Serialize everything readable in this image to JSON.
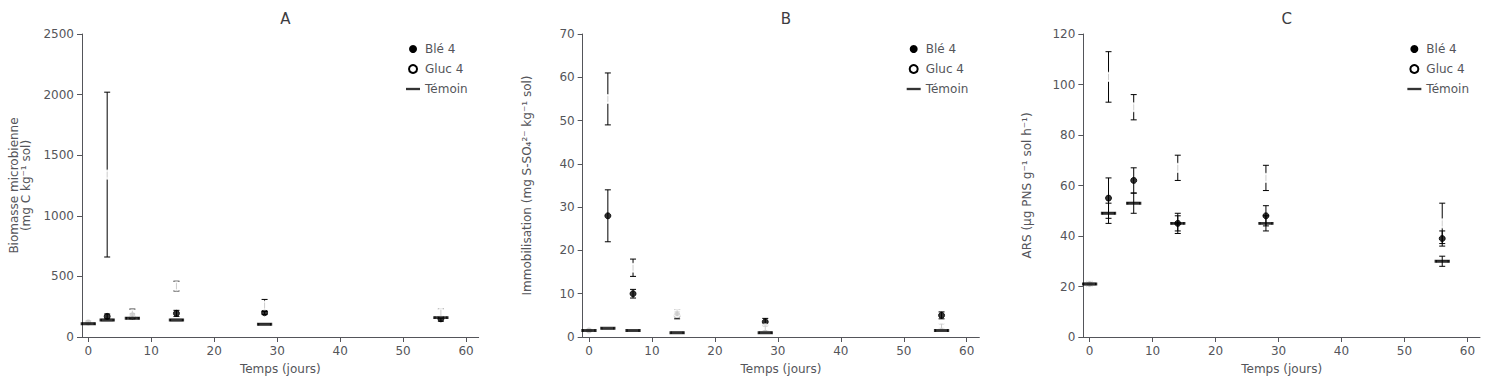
{
  "chart_data": [
    {
      "type": "scatter",
      "title": "A",
      "x_label": "Temps (jours)",
      "y_label": "Biomasse microbienne\n(mg C kg⁻¹ sol)",
      "xlim": [
        -1,
        62
      ],
      "ylim": [
        0,
        2500
      ],
      "xticks": [
        0,
        10,
        20,
        30,
        40,
        50,
        60
      ],
      "yticks": [
        0,
        500,
        1000,
        1500,
        2000,
        2500
      ],
      "grid": false,
      "legend": "upper right",
      "series": [
        {
          "name": "Blé 4",
          "color": "#000000",
          "marker": "circle",
          "x": [
            0,
            3,
            7,
            14,
            28,
            56
          ],
          "values": [
            120,
            170,
            175,
            195,
            200,
            150
          ],
          "errors": [
            15,
            20,
            20,
            25,
            15,
            20
          ]
        },
        {
          "name": "Gluc 4",
          "color": "#000000",
          "marker": "open_circle",
          "x": [
            0,
            3,
            7,
            14,
            28,
            56
          ],
          "values": [
            120,
            1340,
            190,
            420,
            260,
            200
          ],
          "errors": [
            15,
            680,
            40,
            40,
            50,
            30
          ]
        },
        {
          "name": "Témoin",
          "color": "#000000",
          "marker": "dash",
          "x": [
            0,
            3,
            7,
            14,
            28,
            56
          ],
          "values": [
            110,
            140,
            155,
            140,
            105,
            160
          ]
        }
      ]
    },
    {
      "type": "scatter",
      "title": "B",
      "x_label": "Temps (jours)",
      "y_label": "Immobilisation (mg S-SO₄²⁻ kg⁻¹ sol)",
      "xlim": [
        -1,
        62
      ],
      "ylim": [
        0,
        70
      ],
      "xticks": [
        0,
        10,
        20,
        30,
        40,
        50,
        60
      ],
      "yticks": [
        0,
        10,
        20,
        30,
        40,
        50,
        60,
        70
      ],
      "grid": false,
      "legend": "upper right",
      "series": [
        {
          "name": "Blé 4",
          "color": "#000000",
          "marker": "circle",
          "x": [
            0,
            3,
            7,
            14,
            28,
            56
          ],
          "values": [
            1.5,
            28,
            10,
            5.0,
            3.5,
            5.0
          ],
          "errors": [
            0.3,
            6,
            1,
            0.8,
            0.8,
            0.8
          ]
        },
        {
          "name": "Gluc 4",
          "color": "#000000",
          "marker": "open_circle",
          "x": [
            0,
            3,
            7,
            14,
            28,
            56
          ],
          "values": [
            1.5,
            55,
            16,
            5.5,
            2.0,
            2.5
          ],
          "errors": [
            0.3,
            6,
            2,
            0.8,
            0.5,
            0.5
          ]
        },
        {
          "name": "Témoin",
          "color": "#000000",
          "marker": "dash",
          "x": [
            0,
            3,
            7,
            14,
            28,
            56
          ],
          "values": [
            1.5,
            2.0,
            1.5,
            1.0,
            1.0,
            1.5
          ]
        }
      ]
    },
    {
      "type": "scatter",
      "title": "C",
      "x_label": "Temps (jours)",
      "y_label": "ARS (µg PNS g⁻¹ sol h⁻¹)",
      "xlim": [
        -1,
        62
      ],
      "ylim": [
        0,
        120
      ],
      "xticks": [
        0,
        10,
        20,
        30,
        40,
        50,
        60
      ],
      "yticks": [
        0,
        20,
        40,
        60,
        80,
        100,
        120
      ],
      "grid": false,
      "legend": "upper right",
      "series": [
        {
          "name": "Blé 4",
          "color": "#000000",
          "marker": "circle",
          "x": [
            0,
            3,
            7,
            14,
            28,
            56
          ],
          "values": [
            21,
            55,
            62,
            45,
            48,
            39
          ],
          "errors": [
            1,
            8,
            5,
            4,
            4,
            3
          ]
        },
        {
          "name": "Gluc 4",
          "color": "#000000",
          "marker": "open_circle",
          "x": [
            0,
            3,
            7,
            14,
            28,
            56
          ],
          "values": [
            21,
            103,
            91,
            67,
            63,
            45
          ],
          "errors": [
            1,
            10,
            5,
            5,
            5,
            8
          ]
        },
        {
          "name": "Témoin",
          "color": "#000000",
          "marker": "dash",
          "x": [
            0,
            3,
            7,
            14,
            28,
            56
          ],
          "values": [
            21,
            49,
            53,
            45,
            45,
            30
          ],
          "errors": [
            1,
            4,
            4,
            3,
            3,
            2
          ]
        }
      ]
    }
  ]
}
